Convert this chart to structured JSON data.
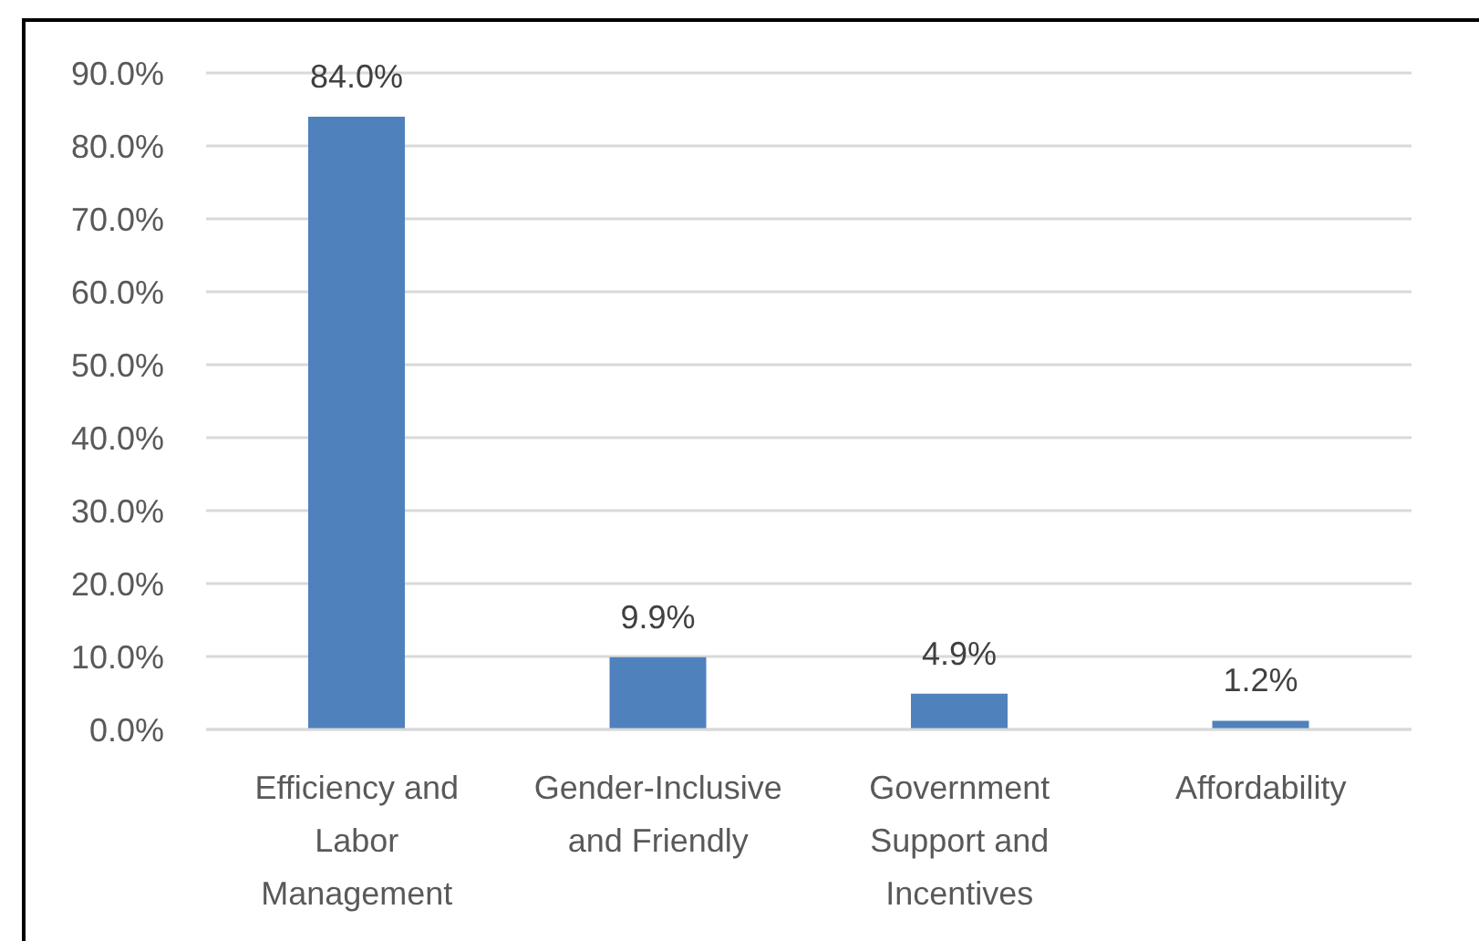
{
  "chart_data": {
    "type": "bar",
    "categories": [
      "Efficiency and Labor Management",
      "Gender-Inclusive and Friendly",
      "Government Support and Incentives",
      "Affordability"
    ],
    "values": [
      84.0,
      9.9,
      4.9,
      1.2
    ],
    "color": "#4f81bd",
    "value_labels": [
      "84.0%",
      "9.9%",
      "4.9%",
      "1.2%"
    ],
    "ylim": [
      0,
      90
    ],
    "yticks": [
      {
        "value": 0,
        "label": "0.0%"
      },
      {
        "value": 10,
        "label": "10.0%"
      },
      {
        "value": 20,
        "label": "20.0%"
      },
      {
        "value": 30,
        "label": "30.0%"
      },
      {
        "value": 40,
        "label": "40.0%"
      },
      {
        "value": 50,
        "label": "50.0%"
      },
      {
        "value": 60,
        "label": "60.0%"
      },
      {
        "value": 70,
        "label": "70.0%"
      },
      {
        "value": 80,
        "label": "80.0%"
      },
      {
        "value": 90,
        "label": "90.0%"
      }
    ],
    "grid": "y"
  }
}
